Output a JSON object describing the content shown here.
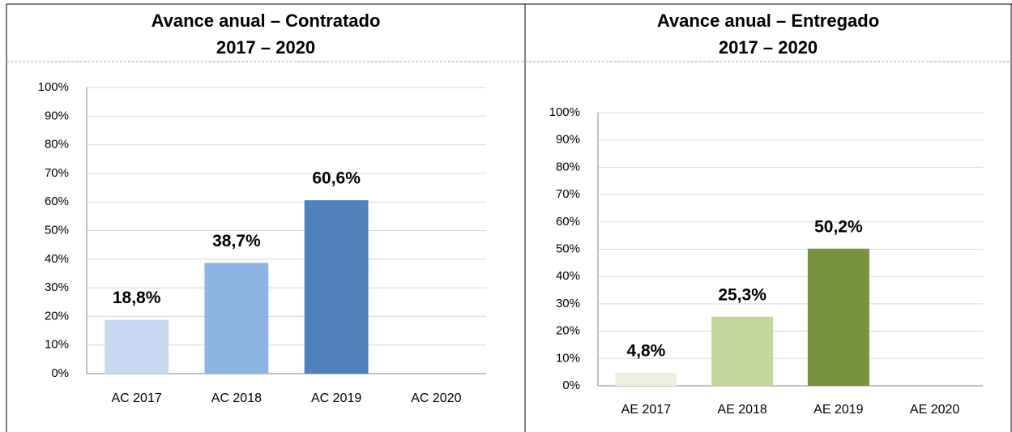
{
  "chart_data": [
    {
      "type": "bar",
      "title": "Avance anual – Contratado",
      "subtitle": "2017 – 2020",
      "categories": [
        "AC 2017",
        "AC 2018",
        "AC 2019",
        "AC 2020"
      ],
      "values": [
        18.8,
        38.7,
        60.6,
        null
      ],
      "value_labels": [
        "18,8%",
        "38,7%",
        "60,6%",
        null
      ],
      "colors": [
        "#c6d9f1",
        "#8eb4e3",
        "#4f81bd",
        null
      ],
      "ylim": [
        0,
        100
      ],
      "yticks": [
        {
          "value": 0,
          "label": "0%"
        },
        {
          "value": 10,
          "label": "10%"
        },
        {
          "value": 20,
          "label": "20%"
        },
        {
          "value": 30,
          "label": "30%"
        },
        {
          "value": 40,
          "label": "40%"
        },
        {
          "value": 50,
          "label": "50%"
        },
        {
          "value": 60,
          "label": "60%"
        },
        {
          "value": 70,
          "label": "70%"
        },
        {
          "value": 80,
          "label": "80%"
        },
        {
          "value": 90,
          "label": "90%"
        },
        {
          "value": 100,
          "label": "100%"
        }
      ],
      "grid": true
    },
    {
      "type": "bar",
      "title": "Avance anual – Entregado",
      "subtitle": "2017 – 2020",
      "categories": [
        "AE 2017",
        "AE 2018",
        "AE 2019",
        "AE 2020"
      ],
      "values": [
        4.8,
        25.3,
        50.2,
        null
      ],
      "value_labels": [
        "4,8%",
        "25,3%",
        "50,2%",
        null
      ],
      "colors": [
        "#ebf1de",
        "#c3d69b",
        "#77933c",
        null
      ],
      "ylim": [
        0,
        100
      ],
      "yticks": [
        {
          "value": 0,
          "label": "0%"
        },
        {
          "value": 10,
          "label": "10%"
        },
        {
          "value": 20,
          "label": "20%"
        },
        {
          "value": 30,
          "label": "30%"
        },
        {
          "value": 40,
          "label": "40%"
        },
        {
          "value": 50,
          "label": "50%"
        },
        {
          "value": 60,
          "label": "60%"
        },
        {
          "value": 70,
          "label": "70%"
        },
        {
          "value": 80,
          "label": "80%"
        },
        {
          "value": 90,
          "label": "90%"
        },
        {
          "value": 100,
          "label": "100%"
        }
      ],
      "grid": true
    }
  ]
}
